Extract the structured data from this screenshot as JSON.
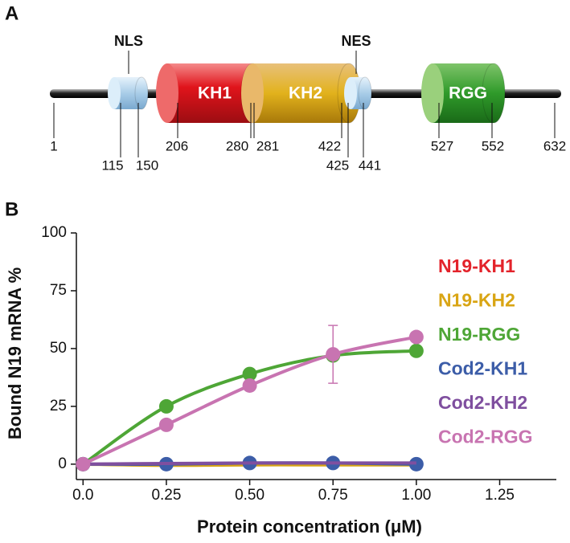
{
  "diagram": {
    "label": "A",
    "domains": [
      {
        "name": "NLS"
      },
      {
        "name": "KH1"
      },
      {
        "name": "KH2"
      },
      {
        "name": "NES"
      },
      {
        "name": "RGG"
      }
    ],
    "positions": [
      1,
      115,
      150,
      206,
      280,
      281,
      422,
      425,
      441,
      527,
      552,
      632
    ]
  },
  "chart_data": {
    "type": "line",
    "label": "B",
    "xlabel": "Protein concentration (μM)",
    "ylabel": "Bound N19 mRNA %",
    "x": [
      0,
      0.25,
      0.5,
      0.75,
      1.0
    ],
    "xlim": [
      -0.02,
      1.42
    ],
    "xticks": [
      {
        "value": 0,
        "label": "0.0"
      },
      0.25,
      {
        "value": 0.5,
        "label": "0.50"
      },
      0.75,
      {
        "value": 1,
        "label": "1.00"
      },
      1.25
    ],
    "ylim": [
      -7,
      100
    ],
    "yticks": [
      0,
      25,
      50,
      75,
      100
    ],
    "series": [
      {
        "name": "N19-KH1",
        "color": "#e3232b",
        "values": [
          0,
          0,
          0,
          0,
          0
        ],
        "markers": false
      },
      {
        "name": "N19-KH2",
        "color": "#d9a514",
        "values": [
          0,
          -0.5,
          -0.3,
          -0.3,
          -0.3
        ],
        "markers": false
      },
      {
        "name": "N19-RGG",
        "color": "#4ea636",
        "values": [
          0,
          25,
          39,
          47,
          49
        ],
        "markers": true
      },
      {
        "name": "Cod2-KH1",
        "color": "#3c5da8",
        "values": [
          0,
          0,
          0.5,
          0.5,
          0
        ],
        "markers": true
      },
      {
        "name": "Cod2-KH2",
        "color": "#7f4f9f",
        "values": [
          0,
          0.3,
          0.5,
          0.5,
          0.5
        ],
        "markers": false
      },
      {
        "name": "Cod2-RGG",
        "color": "#c874b1",
        "values": [
          0,
          17,
          34,
          47.5,
          55
        ],
        "errors": [
          null,
          null,
          null,
          12.5,
          null
        ],
        "markers": true
      }
    ]
  }
}
